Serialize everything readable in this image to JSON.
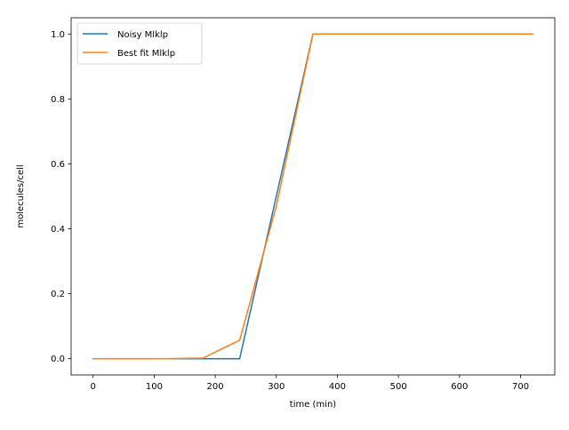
{
  "chart_data": {
    "type": "line",
    "title": "",
    "xlabel": "time (min)",
    "ylabel": "molecules/cell",
    "xlim": [
      -36,
      756
    ],
    "ylim": [
      -0.05,
      1.05
    ],
    "x_ticks": [
      0,
      100,
      200,
      300,
      400,
      500,
      600,
      700
    ],
    "y_ticks": [
      0.0,
      0.2,
      0.4,
      0.6,
      0.8,
      1.0
    ],
    "x_tick_labels": [
      "0",
      "100",
      "200",
      "300",
      "400",
      "500",
      "600",
      "700"
    ],
    "y_tick_labels": [
      "0.0",
      "0.2",
      "0.4",
      "0.6",
      "0.8",
      "1.0"
    ],
    "grid": false,
    "legend_position": "top-left",
    "series": [
      {
        "name": "Noisy Mlklp",
        "color": "#1f77b4",
        "x": [
          0,
          60,
          120,
          180,
          240,
          300,
          360,
          420,
          480,
          540,
          600,
          660,
          720
        ],
        "y": [
          0.0,
          0.0,
          0.0,
          0.0,
          0.0,
          0.5,
          1.0,
          1.0,
          1.0,
          1.0,
          1.0,
          1.0,
          1.0
        ]
      },
      {
        "name": "Best fit Mlklp",
        "color": "#ff7f0e",
        "x": [
          0,
          60,
          120,
          180,
          240,
          300,
          360,
          420,
          480,
          540,
          600,
          660,
          720
        ],
        "y": [
          0.0,
          0.0,
          0.0,
          0.002,
          0.057,
          0.47,
          1.0,
          1.0,
          1.0,
          1.0,
          1.0,
          1.0,
          1.0
        ]
      }
    ]
  }
}
